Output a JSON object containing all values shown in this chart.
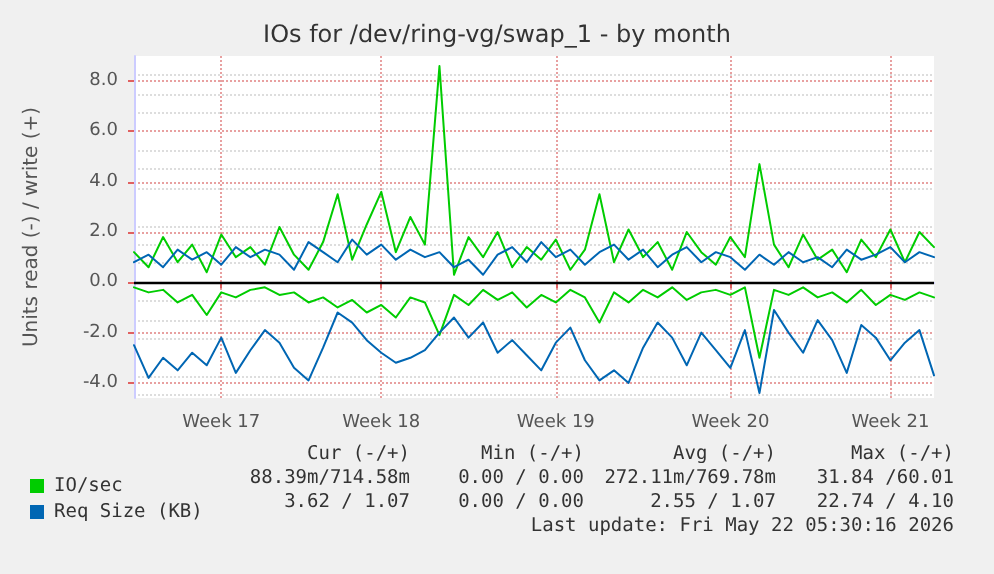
{
  "chart_data": {
    "type": "line",
    "title": "IOs for /dev/ring-vg/swap_1 - by month",
    "ylabel": "Units read (-) / write (+)",
    "categories": [
      null,
      null,
      null,
      null,
      null,
      null,
      "Week 17",
      null,
      null,
      null,
      null,
      null,
      null,
      null,
      null,
      null,
      null,
      "Week 18",
      null,
      null,
      null,
      null,
      null,
      null,
      null,
      null,
      null,
      null,
      null,
      "Week 19",
      null,
      null,
      null,
      null,
      null,
      null,
      null,
      null,
      null,
      null,
      null,
      "Week 20",
      null,
      null,
      null,
      null,
      null,
      null,
      null,
      null,
      null,
      null,
      "Week 21",
      null,
      null,
      null
    ],
    "ylim": [
      -4.6,
      9
    ],
    "yticks": [
      {
        "value": -4,
        "label": "-4.0"
      },
      {
        "value": -2,
        "label": "-2.0"
      },
      {
        "value": 0,
        "label": "0.0"
      },
      {
        "value": 2,
        "label": "2.0"
      },
      {
        "value": 4,
        "label": "4.0"
      },
      {
        "value": 6,
        "label": "6.0"
      },
      {
        "value": 8,
        "label": "8.0"
      }
    ],
    "grid": true,
    "legend": "bottom left",
    "marker": "none",
    "line_style": "solid",
    "ref_lines": [
      {
        "axis": "y",
        "value": 0,
        "color": "#000000"
      }
    ],
    "series": [
      {
        "name": "IO/sec",
        "color": "#00cc00",
        "values": [
          1.2,
          0.6,
          1.8,
          0.8,
          1.5,
          0.4,
          1.9,
          1.0,
          1.4,
          0.7,
          2.2,
          1.1,
          0.5,
          1.6,
          3.5,
          0.9,
          2.3,
          3.6,
          1.2,
          2.6,
          1.5,
          8.6,
          0.3,
          1.8,
          1.0,
          2.0,
          0.6,
          1.4,
          0.9,
          1.7,
          0.5,
          1.3,
          3.5,
          0.8,
          2.1,
          1.0,
          1.6,
          0.5,
          2.0,
          1.2,
          0.7,
          1.8,
          1.0,
          4.7,
          1.5,
          0.6,
          1.9,
          0.9,
          1.3,
          0.4,
          1.7,
          1.0,
          2.1,
          0.8,
          2.0,
          1.4
        ]
      },
      {
        "color": "#00cc00",
        "values": [
          -0.2,
          -0.4,
          -0.3,
          -0.8,
          -0.5,
          -1.3,
          -0.4,
          -0.6,
          -0.3,
          -0.2,
          -0.5,
          -0.4,
          -0.8,
          -0.6,
          -1.0,
          -0.7,
          -1.2,
          -0.9,
          -1.4,
          -0.6,
          -0.8,
          -2.1,
          -0.5,
          -0.9,
          -0.3,
          -0.7,
          -0.4,
          -1.0,
          -0.5,
          -0.8,
          -0.3,
          -0.6,
          -1.6,
          -0.4,
          -0.8,
          -0.3,
          -0.6,
          -0.2,
          -0.7,
          -0.4,
          -0.3,
          -0.5,
          -0.2,
          -3.0,
          -0.3,
          -0.5,
          -0.2,
          -0.6,
          -0.4,
          -0.8,
          -0.3,
          -0.9,
          -0.5,
          -0.7,
          -0.4,
          -0.6
        ]
      },
      {
        "name": "Req Size (KB)",
        "color": "#0066b3",
        "values": [
          0.8,
          1.1,
          0.6,
          1.3,
          0.9,
          1.2,
          0.7,
          1.4,
          1.0,
          1.3,
          1.1,
          0.5,
          1.6,
          1.2,
          0.8,
          1.7,
          1.1,
          1.5,
          0.9,
          1.3,
          1.0,
          1.2,
          0.6,
          0.9,
          0.3,
          1.1,
          1.4,
          0.8,
          1.6,
          1.0,
          1.3,
          0.7,
          1.2,
          1.5,
          0.9,
          1.3,
          0.6,
          1.1,
          1.4,
          0.8,
          1.2,
          1.0,
          0.5,
          1.1,
          0.7,
          1.2,
          0.8,
          1.0,
          0.6,
          1.3,
          0.9,
          1.1,
          1.4,
          0.8,
          1.2,
          1.0
        ]
      },
      {
        "color": "#0066b3",
        "values": [
          -2.5,
          -3.8,
          -3.0,
          -3.5,
          -2.8,
          -3.3,
          -2.2,
          -3.6,
          -2.7,
          -1.9,
          -2.4,
          -3.4,
          -3.9,
          -2.6,
          -1.2,
          -1.6,
          -2.3,
          -2.8,
          -3.2,
          -3.0,
          -2.7,
          -2.0,
          -1.4,
          -2.2,
          -1.6,
          -2.8,
          -2.3,
          -2.9,
          -3.5,
          -2.4,
          -1.8,
          -3.1,
          -3.9,
          -3.5,
          -4.0,
          -2.6,
          -1.6,
          -2.2,
          -3.3,
          -2.0,
          -2.7,
          -3.4,
          -1.9,
          -4.4,
          -1.1,
          -2.0,
          -2.8,
          -1.5,
          -2.3,
          -3.6,
          -1.7,
          -2.2,
          -3.1,
          -2.4,
          -1.9,
          -3.7
        ]
      }
    ],
    "annotations": [
      "Cur (-/+)",
      "Min (-/+)",
      "Avg (-/+)",
      "Max (-/+)",
      "88.39m/714.58m",
      "0.00 / 0.00",
      "272.11m/769.78m",
      "31.84 /60.01",
      "3.62 / 1.07",
      "0.00 / 0.00",
      "2.55 / 1.07",
      "22.74 / 4.10",
      "Last update: Fri May 22 05:30:16 2026"
    ]
  }
}
